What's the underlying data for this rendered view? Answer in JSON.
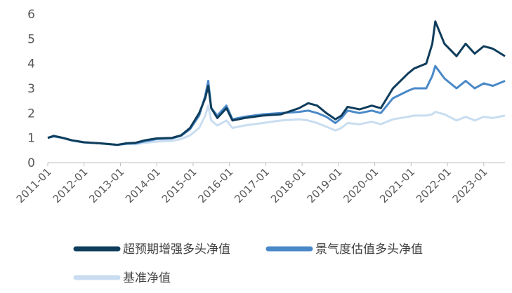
{
  "chart_data": {
    "type": "line",
    "title": "",
    "xlabel": "",
    "ylabel": "",
    "ylim": [
      0,
      6
    ],
    "yticks": [
      "0",
      "1",
      "2",
      "3",
      "4",
      "5",
      "6"
    ],
    "x_tick_labels": [
      "2011-01",
      "2012-01",
      "2013-01",
      "2014-01",
      "2015-01",
      "2016-01",
      "2017-01",
      "2018-01",
      "2019-01",
      "2020-01",
      "2021-01",
      "2022-01",
      "2023-01"
    ],
    "x_range": [
      "2011-01",
      "2023-08"
    ],
    "grid": false,
    "legend_position": "bottom",
    "series": [
      {
        "name": "超预期增强多头净值",
        "color": "#0f3d5c",
        "points": [
          [
            "2011-01",
            1.0
          ],
          [
            "2011-03",
            1.08
          ],
          [
            "2011-06",
            1.0
          ],
          [
            "2011-09",
            0.9
          ],
          [
            "2012-01",
            0.82
          ],
          [
            "2012-06",
            0.78
          ],
          [
            "2012-12",
            0.72
          ],
          [
            "2013-03",
            0.78
          ],
          [
            "2013-06",
            0.8
          ],
          [
            "2013-09",
            0.9
          ],
          [
            "2014-01",
            0.98
          ],
          [
            "2014-06",
            1.0
          ],
          [
            "2014-09",
            1.1
          ],
          [
            "2014-12",
            1.4
          ],
          [
            "2015-03",
            2.0
          ],
          [
            "2015-05",
            2.6
          ],
          [
            "2015-06",
            3.1
          ],
          [
            "2015-07",
            2.2
          ],
          [
            "2015-09",
            1.8
          ],
          [
            "2015-12",
            2.2
          ],
          [
            "2016-02",
            1.7
          ],
          [
            "2016-06",
            1.8
          ],
          [
            "2016-12",
            1.9
          ],
          [
            "2017-06",
            1.95
          ],
          [
            "2017-12",
            2.2
          ],
          [
            "2018-03",
            2.4
          ],
          [
            "2018-06",
            2.3
          ],
          [
            "2018-09",
            2.0
          ],
          [
            "2018-12",
            1.75
          ],
          [
            "2019-02",
            1.9
          ],
          [
            "2019-04",
            2.25
          ],
          [
            "2019-08",
            2.15
          ],
          [
            "2019-12",
            2.3
          ],
          [
            "2020-03",
            2.2
          ],
          [
            "2020-07",
            3.0
          ],
          [
            "2020-12",
            3.6
          ],
          [
            "2021-02",
            3.8
          ],
          [
            "2021-06",
            4.0
          ],
          [
            "2021-08",
            4.8
          ],
          [
            "2021-09",
            5.7
          ],
          [
            "2021-12",
            4.8
          ],
          [
            "2022-04",
            4.3
          ],
          [
            "2022-07",
            4.8
          ],
          [
            "2022-10",
            4.4
          ],
          [
            "2023-01",
            4.7
          ],
          [
            "2023-04",
            4.6
          ],
          [
            "2023-08",
            4.3
          ]
        ]
      },
      {
        "name": "景气度估值多头净值",
        "color": "#4a89c8",
        "points": [
          [
            "2011-01",
            1.0
          ],
          [
            "2011-03",
            1.06
          ],
          [
            "2011-06",
            1.0
          ],
          [
            "2011-09",
            0.9
          ],
          [
            "2012-01",
            0.82
          ],
          [
            "2012-06",
            0.78
          ],
          [
            "2012-12",
            0.72
          ],
          [
            "2013-03",
            0.76
          ],
          [
            "2013-06",
            0.78
          ],
          [
            "2013-09",
            0.86
          ],
          [
            "2014-01",
            0.95
          ],
          [
            "2014-06",
            0.98
          ],
          [
            "2014-09",
            1.08
          ],
          [
            "2014-12",
            1.35
          ],
          [
            "2015-03",
            1.9
          ],
          [
            "2015-05",
            2.7
          ],
          [
            "2015-06",
            3.3
          ],
          [
            "2015-07",
            2.2
          ],
          [
            "2015-09",
            1.9
          ],
          [
            "2015-12",
            2.3
          ],
          [
            "2016-02",
            1.75
          ],
          [
            "2016-06",
            1.85
          ],
          [
            "2016-12",
            1.95
          ],
          [
            "2017-06",
            2.0
          ],
          [
            "2017-12",
            2.05
          ],
          [
            "2018-03",
            2.1
          ],
          [
            "2018-06",
            2.0
          ],
          [
            "2018-09",
            1.85
          ],
          [
            "2018-12",
            1.6
          ],
          [
            "2019-02",
            1.8
          ],
          [
            "2019-04",
            2.1
          ],
          [
            "2019-08",
            2.0
          ],
          [
            "2019-12",
            2.1
          ],
          [
            "2020-03",
            2.0
          ],
          [
            "2020-07",
            2.6
          ],
          [
            "2020-12",
            2.9
          ],
          [
            "2021-02",
            3.0
          ],
          [
            "2021-06",
            3.0
          ],
          [
            "2021-08",
            3.5
          ],
          [
            "2021-09",
            3.9
          ],
          [
            "2021-12",
            3.4
          ],
          [
            "2022-04",
            3.0
          ],
          [
            "2022-07",
            3.3
          ],
          [
            "2022-10",
            3.0
          ],
          [
            "2023-01",
            3.2
          ],
          [
            "2023-04",
            3.1
          ],
          [
            "2023-08",
            3.3
          ]
        ]
      },
      {
        "name": "基准净值",
        "color": "#c9ddf0",
        "points": [
          [
            "2011-01",
            1.0
          ],
          [
            "2011-03",
            1.05
          ],
          [
            "2011-06",
            0.98
          ],
          [
            "2011-09",
            0.88
          ],
          [
            "2012-01",
            0.8
          ],
          [
            "2012-06",
            0.78
          ],
          [
            "2012-12",
            0.72
          ],
          [
            "2013-03",
            0.76
          ],
          [
            "2013-06",
            0.74
          ],
          [
            "2013-09",
            0.8
          ],
          [
            "2014-01",
            0.85
          ],
          [
            "2014-06",
            0.88
          ],
          [
            "2014-09",
            0.95
          ],
          [
            "2014-12",
            1.1
          ],
          [
            "2015-03",
            1.4
          ],
          [
            "2015-05",
            1.9
          ],
          [
            "2015-06",
            2.3
          ],
          [
            "2015-07",
            1.7
          ],
          [
            "2015-09",
            1.5
          ],
          [
            "2015-12",
            1.7
          ],
          [
            "2016-02",
            1.4
          ],
          [
            "2016-06",
            1.5
          ],
          [
            "2016-12",
            1.6
          ],
          [
            "2017-06",
            1.7
          ],
          [
            "2017-12",
            1.75
          ],
          [
            "2018-03",
            1.7
          ],
          [
            "2018-06",
            1.6
          ],
          [
            "2018-09",
            1.45
          ],
          [
            "2018-12",
            1.3
          ],
          [
            "2019-02",
            1.4
          ],
          [
            "2019-04",
            1.6
          ],
          [
            "2019-08",
            1.55
          ],
          [
            "2019-12",
            1.65
          ],
          [
            "2020-03",
            1.55
          ],
          [
            "2020-07",
            1.75
          ],
          [
            "2020-12",
            1.85
          ],
          [
            "2021-02",
            1.9
          ],
          [
            "2021-06",
            1.9
          ],
          [
            "2021-08",
            1.95
          ],
          [
            "2021-09",
            2.05
          ],
          [
            "2021-12",
            1.95
          ],
          [
            "2022-04",
            1.7
          ],
          [
            "2022-07",
            1.85
          ],
          [
            "2022-10",
            1.7
          ],
          [
            "2023-01",
            1.85
          ],
          [
            "2023-04",
            1.8
          ],
          [
            "2023-08",
            1.9
          ]
        ]
      }
    ]
  }
}
